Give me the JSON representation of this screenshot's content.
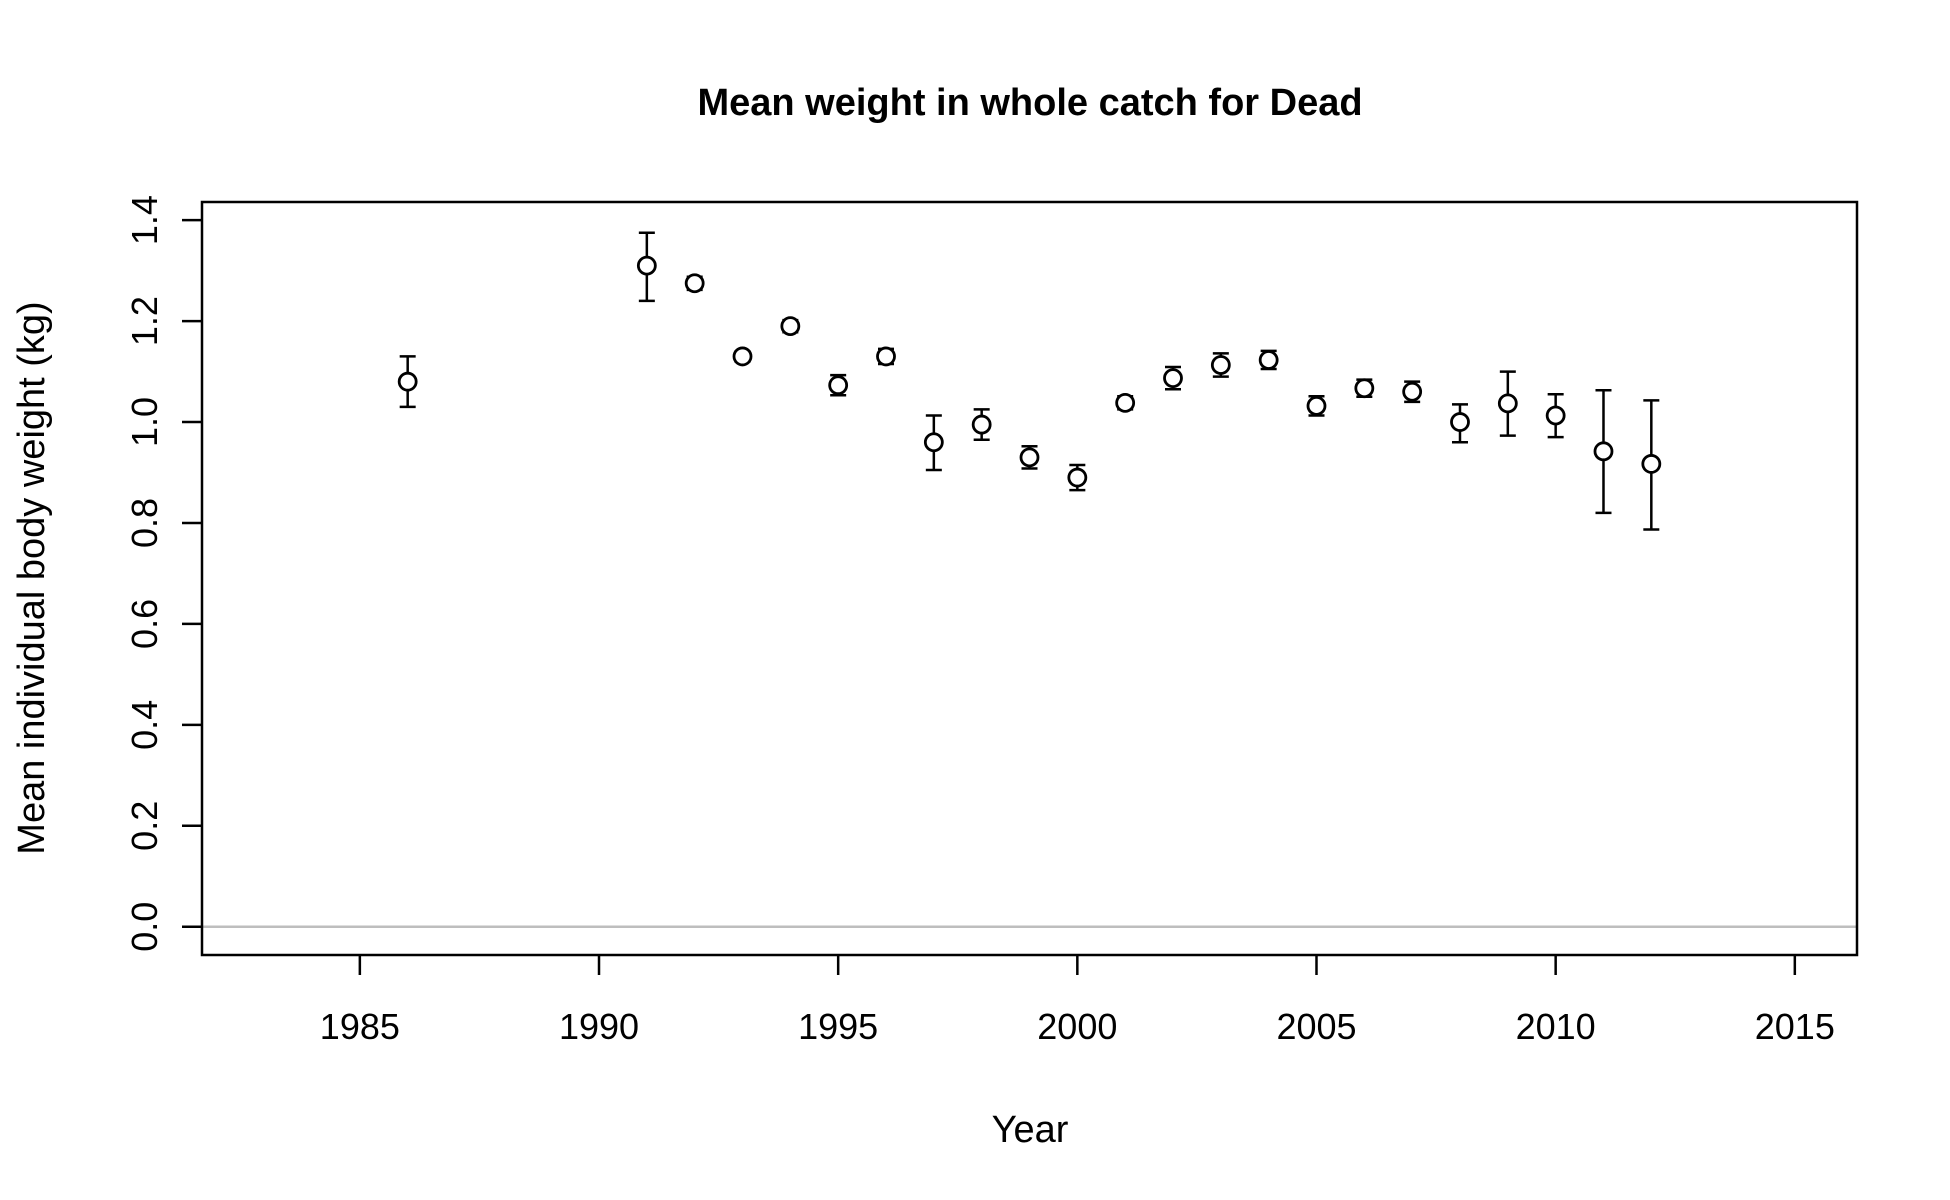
{
  "chart_data": {
    "type": "scatter",
    "title": "Mean weight in whole catch for Dead",
    "xlabel": "Year",
    "ylabel": "Mean individual body weight (kg)",
    "xlim": [
      1981.7,
      2016.3
    ],
    "ylim": [
      -0.056,
      1.436
    ],
    "xticks": [
      "1985",
      "1990",
      "1995",
      "2000",
      "2005",
      "2010",
      "2015"
    ],
    "yticks": [
      "0.0",
      "0.2",
      "0.4",
      "0.6",
      "0.8",
      "1.0",
      "1.2",
      "1.4"
    ],
    "reference_line": {
      "y": 0,
      "color": "#bebebe"
    },
    "error_bars": true,
    "points": [
      {
        "x": 1986,
        "y": 1.08,
        "lower": 1.03,
        "upper": 1.13
      },
      {
        "x": 1991,
        "y": 1.31,
        "lower": 1.24,
        "upper": 1.375
      },
      {
        "x": 1992,
        "y": 1.275,
        "lower": 1.262,
        "upper": 1.288
      },
      {
        "x": 1993,
        "y": 1.13,
        "lower": 1.12,
        "upper": 1.14
      },
      {
        "x": 1994,
        "y": 1.19,
        "lower": 1.178,
        "upper": 1.202
      },
      {
        "x": 1995,
        "y": 1.073,
        "lower": 1.053,
        "upper": 1.093
      },
      {
        "x": 1996,
        "y": 1.13,
        "lower": 1.115,
        "upper": 1.145
      },
      {
        "x": 1997,
        "y": 0.96,
        "lower": 0.905,
        "upper": 1.013
      },
      {
        "x": 1998,
        "y": 0.995,
        "lower": 0.965,
        "upper": 1.025
      },
      {
        "x": 1999,
        "y": 0.93,
        "lower": 0.908,
        "upper": 0.952
      },
      {
        "x": 2000,
        "y": 0.89,
        "lower": 0.865,
        "upper": 0.915
      },
      {
        "x": 2001,
        "y": 1.038,
        "lower": 1.025,
        "upper": 1.051
      },
      {
        "x": 2002,
        "y": 1.087,
        "lower": 1.065,
        "upper": 1.109
      },
      {
        "x": 2003,
        "y": 1.113,
        "lower": 1.09,
        "upper": 1.136
      },
      {
        "x": 2004,
        "y": 1.123,
        "lower": 1.105,
        "upper": 1.141
      },
      {
        "x": 2005,
        "y": 1.032,
        "lower": 1.013,
        "upper": 1.051
      },
      {
        "x": 2006,
        "y": 1.067,
        "lower": 1.05,
        "upper": 1.084
      },
      {
        "x": 2007,
        "y": 1.06,
        "lower": 1.04,
        "upper": 1.08
      },
      {
        "x": 2008,
        "y": 1.0,
        "lower": 0.96,
        "upper": 1.035
      },
      {
        "x": 2009,
        "y": 1.037,
        "lower": 0.973,
        "upper": 1.1
      },
      {
        "x": 2010,
        "y": 1.013,
        "lower": 0.97,
        "upper": 1.055
      },
      {
        "x": 2011,
        "y": 0.942,
        "lower": 0.82,
        "upper": 1.063
      },
      {
        "x": 2012,
        "y": 0.917,
        "lower": 0.787,
        "upper": 1.043
      }
    ]
  }
}
